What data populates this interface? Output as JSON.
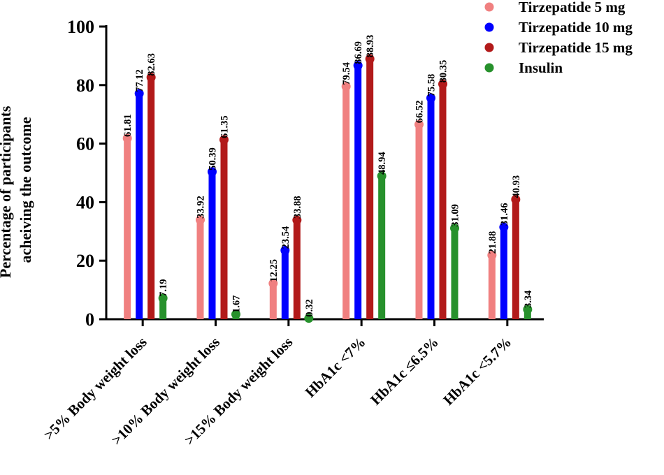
{
  "chart_data": {
    "type": "bar",
    "categories": [
      ">5% Body weight loss",
      ">10% Body weight loss",
      ">15% Body weight loss",
      "HbA1c <7%",
      "HbA1c ≤6.5%",
      "HbA1c <5.7%"
    ],
    "series": [
      {
        "name": "Tirzepatide 5 mg",
        "color": "#f08080",
        "values": [
          61.81,
          33.92,
          12.25,
          79.54,
          66.52,
          21.88
        ],
        "labels": [
          "61.81",
          "33.92",
          "12.25",
          "79.54",
          "66.52",
          "21.88"
        ]
      },
      {
        "name": "Tirzepatide 10 mg",
        "color": "#0000ff",
        "values": [
          77.12,
          50.39,
          23.54,
          86.69,
          75.58,
          31.46
        ],
        "labels": [
          "77.12",
          "50.39",
          "23.54",
          "86.69",
          "75.58",
          "31.46"
        ]
      },
      {
        "name": "Tirzepatide 15 mg",
        "color": "#b21a1a",
        "values": [
          82.63,
          61.35,
          33.88,
          88.93,
          80.35,
          40.93
        ],
        "labels": [
          "82.63",
          "61.35",
          "33.88",
          "88.93",
          "80.35",
          "40.93"
        ]
      },
      {
        "name": "Insulin",
        "color": "#27912c",
        "values": [
          7.19,
          1.67,
          0.32,
          48.94,
          31.09,
          3.34
        ],
        "labels": [
          "7.19",
          "1.67",
          "0.32",
          "48.94",
          "31.09",
          "3.34"
        ]
      }
    ],
    "title": "",
    "xlabel": "",
    "ylabel": "Percentage of participants acheiving the outcome",
    "ylabel_lines": [
      "Percentage of participants",
      "acheiving the outcome"
    ],
    "ylim": [
      0,
      100
    ],
    "yticks": [
      0,
      20,
      40,
      60,
      80,
      100
    ],
    "ytick_labels": [
      "0",
      "20",
      "40",
      "60",
      "80",
      "100"
    ],
    "grid": false,
    "legend": "top-right"
  }
}
